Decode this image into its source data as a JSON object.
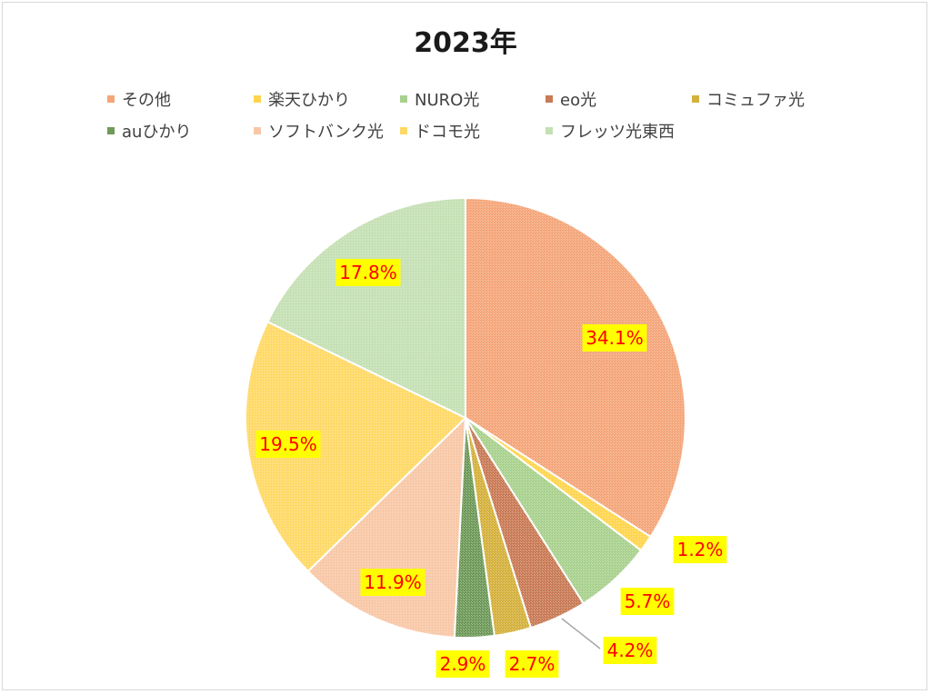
{
  "chart_data": {
    "type": "pie",
    "title": "2023年",
    "legend_position": "top",
    "slices": [
      {
        "label": "その他",
        "value": 34.1,
        "display": "34.1%",
        "color": "#f4a67a"
      },
      {
        "label": "楽天ひかり",
        "value": 1.2,
        "display": "1.2%",
        "color": "#ffd54f"
      },
      {
        "label": "NURO光",
        "value": 5.7,
        "display": "5.7%",
        "color": "#a9d18e"
      },
      {
        "label": "eo光",
        "value": 4.2,
        "display": "4.2%",
        "color": "#c97b56"
      },
      {
        "label": "コミュファ光",
        "value": 2.7,
        "display": "2.7%",
        "color": "#d4b13d"
      },
      {
        "label": "auひかり",
        "value": 2.9,
        "display": "2.9%",
        "color": "#6f9a5a"
      },
      {
        "label": "ソフトバンク光",
        "value": 11.9,
        "display": "11.9%",
        "color": "#f8c7a6"
      },
      {
        "label": "ドコモ光",
        "value": 19.5,
        "display": "19.5%",
        "color": "#ffd966"
      },
      {
        "label": "フレッツ光東西",
        "value": 17.8,
        "display": "17.8%",
        "color": "#c5e0b4"
      }
    ],
    "label_style": {
      "text_color": "#ff0000",
      "background": "#ffff00"
    }
  }
}
